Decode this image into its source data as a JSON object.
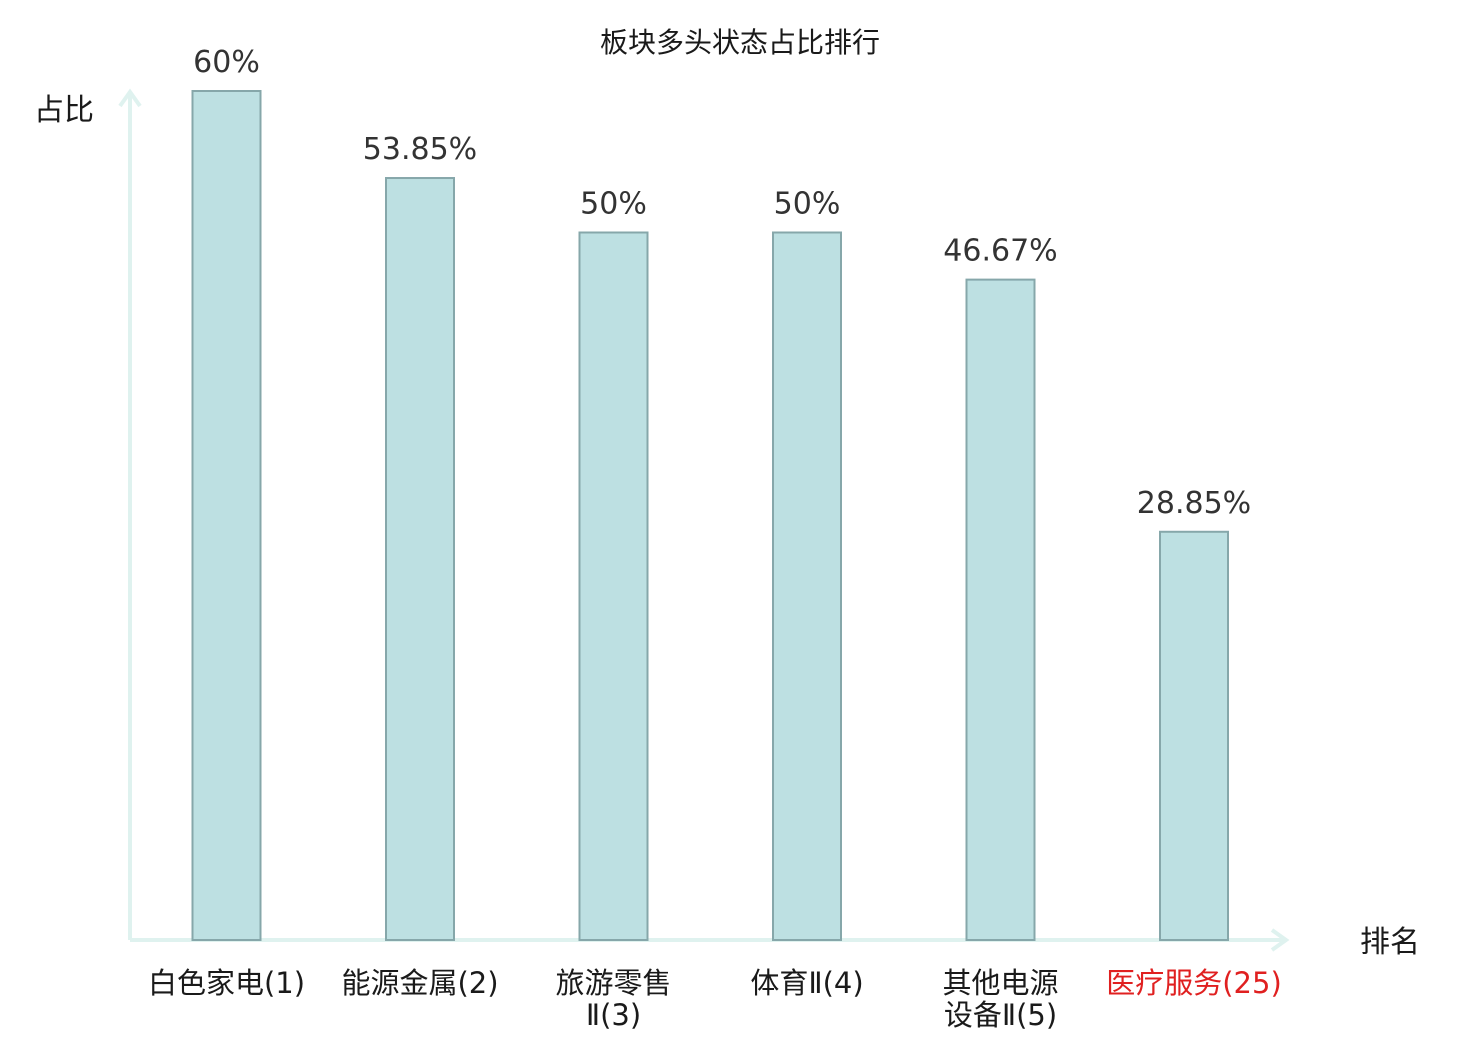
{
  "chart_data": {
    "type": "bar",
    "title": "板块多头状态占比排行",
    "ylabel": "占比",
    "xlabel": "排名",
    "ylim": [
      0,
      60
    ],
    "grid": false,
    "categories": [
      {
        "name": "白色家电",
        "rank": "(1)",
        "lines": [
          "白色家电(1)"
        ]
      },
      {
        "name": "能源金属",
        "rank": "(2)",
        "lines": [
          "能源金属(2)"
        ]
      },
      {
        "name": "旅游零售Ⅱ",
        "rank": "(3)",
        "lines": [
          "旅游零售",
          "Ⅱ(3)"
        ]
      },
      {
        "name": "体育Ⅱ",
        "rank": "(4)",
        "lines": [
          "体育Ⅱ(4)"
        ]
      },
      {
        "name": "其他电源设备Ⅱ",
        "rank": "(5)",
        "lines": [
          "其他电源",
          "设备Ⅱ(5)"
        ]
      },
      {
        "name": "医疗服务",
        "rank": "(25)",
        "lines": [
          "医疗服务(25)"
        ],
        "highlight": true
      }
    ],
    "values": [
      60,
      53.85,
      50,
      50,
      46.67,
      28.85
    ],
    "value_labels": [
      "60%",
      "53.85%",
      "50%",
      "50%",
      "46.67%",
      "28.85%"
    ]
  },
  "colors": {
    "bar_fill": "#bde0e2",
    "bar_stroke": "#86a7aa",
    "axis": "#dff2ef",
    "highlight_text": "#e02020",
    "normal_text": "#1a1a1a"
  }
}
